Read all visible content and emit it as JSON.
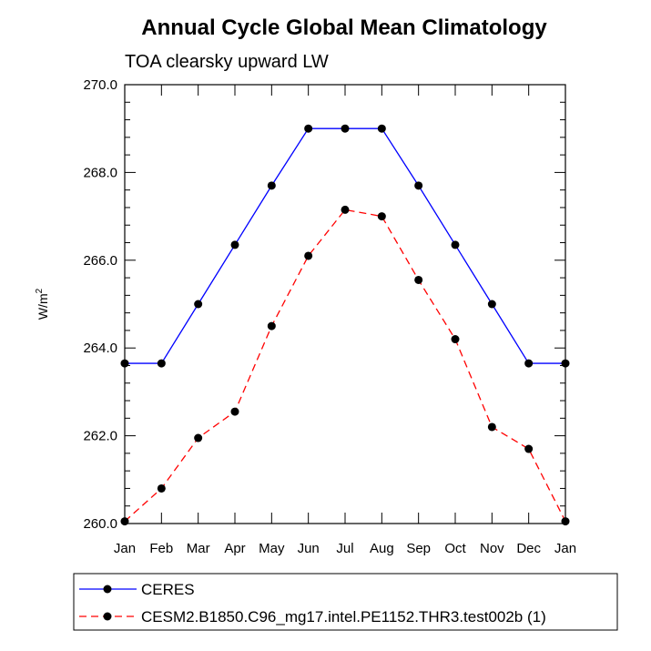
{
  "chart_data": {
    "type": "line",
    "title": "Annual Cycle Global Mean Climatology",
    "subtitle": "TOA clearsky upward LW",
    "ylabel_base": "W/m",
    "ylabel_sup": "2",
    "xlabel": "",
    "categories": [
      "Jan",
      "Feb",
      "Mar",
      "Apr",
      "May",
      "Jun",
      "Jul",
      "Aug",
      "Sep",
      "Oct",
      "Nov",
      "Dec",
      "Jan"
    ],
    "ylim": [
      260.0,
      270.0
    ],
    "yticks": [
      "260.0",
      "262.0",
      "264.0",
      "266.0",
      "268.0",
      "270.0"
    ],
    "grid": false,
    "legend_position": "bottom",
    "series": [
      {
        "name": "CERES",
        "color": "#0000ff",
        "line_style": "solid",
        "marker": "filled-circle",
        "values": [
          263.65,
          263.65,
          265.0,
          266.35,
          267.7,
          269.0,
          269.0,
          269.0,
          267.7,
          266.35,
          265.0,
          263.65,
          263.65
        ]
      },
      {
        "name": "CESM2.B1850.C96_mg17.intel.PE1152.THR3.test002b (1)",
        "color": "#ff0000",
        "line_style": "dashed",
        "marker": "filled-circle",
        "values": [
          260.05,
          260.8,
          261.95,
          262.55,
          264.5,
          266.1,
          267.15,
          267.0,
          265.55,
          264.2,
          262.2,
          261.7,
          260.05
        ]
      }
    ]
  }
}
